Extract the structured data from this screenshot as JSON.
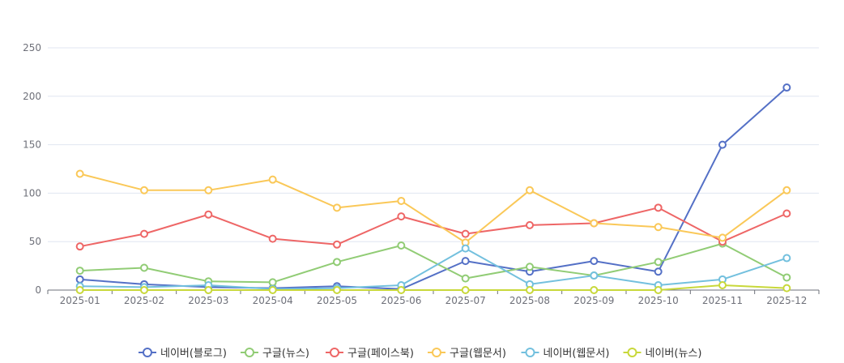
{
  "chart_data": {
    "type": "line",
    "categories": [
      "2025-01",
      "2025-02",
      "2025-03",
      "2025-04",
      "2025-05",
      "2025-06",
      "2025-07",
      "2025-08",
      "2025-09",
      "2025-10",
      "2025-11",
      "2025-12"
    ],
    "ylim": [
      0,
      250
    ],
    "yticks": [
      0,
      50,
      100,
      150,
      200,
      250
    ],
    "grid": true,
    "legend_position": "bottom-center",
    "series": [
      {
        "name": "네이버(블로그)",
        "color": "#5470c6",
        "values": [
          11,
          6,
          3,
          2,
          4,
          1,
          30,
          19,
          30,
          19,
          150,
          209
        ]
      },
      {
        "name": "구글(뉴스)",
        "color": "#91cc75",
        "values": [
          20,
          23,
          9,
          8,
          29,
          46,
          12,
          24,
          15,
          29,
          48,
          13
        ]
      },
      {
        "name": "구글(페이스북)",
        "color": "#ee6666",
        "values": [
          45,
          58,
          78,
          53,
          47,
          76,
          58,
          67,
          69,
          85,
          50,
          79
        ]
      },
      {
        "name": "구글(웹문서)",
        "color": "#fac858",
        "values": [
          120,
          103,
          103,
          114,
          85,
          92,
          49,
          103,
          69,
          65,
          54,
          103
        ]
      },
      {
        "name": "네이버(웹문서)",
        "color": "#73c0de",
        "values": [
          4,
          3,
          5,
          1,
          2,
          5,
          43,
          6,
          15,
          5,
          11,
          33
        ]
      },
      {
        "name": "네이버(뉴스)",
        "color": "#c8d83a",
        "values": [
          0,
          0,
          0,
          0,
          0,
          0,
          0,
          0,
          0,
          0,
          5,
          2
        ]
      }
    ]
  }
}
